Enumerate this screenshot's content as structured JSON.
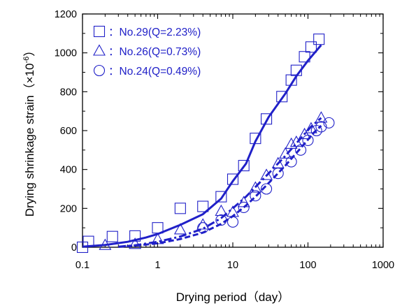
{
  "chart_data": {
    "type": "scatter",
    "x_scale": "log",
    "xlabel": "Drying period（day）",
    "ylabel": "Drying shrinkage strain（×10",
    "ylabel_superscript": "-6",
    "ylabel_suffix": "）",
    "xlim": [
      0.1,
      1000
    ],
    "ylim": [
      0,
      1200
    ],
    "x_ticks": [
      0.1,
      1,
      10,
      100,
      1000
    ],
    "x_tick_labels": [
      "0.1",
      "1",
      "10",
      "100",
      "1000"
    ],
    "y_ticks": [
      0,
      200,
      400,
      600,
      800,
      1000,
      1200
    ],
    "y_tick_labels": [
      "0",
      "200",
      "400",
      "600",
      "800",
      "1000",
      "1200"
    ],
    "grid": false,
    "legend_position": "top-left",
    "colors": {
      "series": "#2020c8",
      "axis": "#000000"
    },
    "series": [
      {
        "name": "：No.29(Q=2.23%)",
        "marker": "square",
        "fit_line": "solid",
        "points": [
          [
            0.1,
            0
          ],
          [
            0.12,
            30
          ],
          [
            0.25,
            55
          ],
          [
            0.5,
            58
          ],
          [
            1,
            100
          ],
          [
            2,
            200
          ],
          [
            4,
            210
          ],
          [
            7,
            260
          ],
          [
            10,
            350
          ],
          [
            14,
            420
          ],
          [
            20,
            560
          ],
          [
            28,
            660
          ],
          [
            45,
            775
          ],
          [
            60,
            860
          ],
          [
            70,
            910
          ],
          [
            90,
            980
          ],
          [
            110,
            1030
          ],
          [
            140,
            1070
          ]
        ],
        "fit": [
          [
            0.1,
            3
          ],
          [
            0.2,
            12
          ],
          [
            0.4,
            28
          ],
          [
            0.7,
            50
          ],
          [
            1,
            68
          ],
          [
            2,
            115
          ],
          [
            4,
            170
          ],
          [
            7,
            250
          ],
          [
            10,
            340
          ],
          [
            15,
            430
          ],
          [
            20,
            545
          ],
          [
            30,
            670
          ],
          [
            50,
            790
          ],
          [
            70,
            880
          ],
          [
            100,
            960
          ],
          [
            150,
            1040
          ]
        ]
      },
      {
        "name": "：No.26(Q=0.73%)",
        "marker": "triangle",
        "fit_line": "dash-dot",
        "points": [
          [
            0.2,
            10
          ],
          [
            0.5,
            15
          ],
          [
            1,
            40
          ],
          [
            2,
            90
          ],
          [
            4,
            115
          ],
          [
            7,
            185
          ],
          [
            10,
            180
          ],
          [
            14,
            230
          ],
          [
            20,
            305
          ],
          [
            28,
            370
          ],
          [
            40,
            430
          ],
          [
            50,
            480
          ],
          [
            60,
            530
          ],
          [
            70,
            540
          ],
          [
            90,
            580
          ],
          [
            110,
            610
          ],
          [
            150,
            665
          ]
        ],
        "fit": [
          [
            0.3,
            3
          ],
          [
            0.5,
            10
          ],
          [
            1,
            28
          ],
          [
            2,
            55
          ],
          [
            4,
            95
          ],
          [
            7,
            150
          ],
          [
            10,
            200
          ],
          [
            15,
            260
          ],
          [
            20,
            310
          ],
          [
            30,
            380
          ],
          [
            50,
            470
          ],
          [
            80,
            560
          ],
          [
            110,
            620
          ],
          [
            150,
            665
          ]
        ]
      },
      {
        "name": "：No.24(Q=0.49%)",
        "marker": "circle",
        "fit_line": "dashed",
        "points": [
          [
            4,
            100
          ],
          [
            7,
            140
          ],
          [
            10,
            130
          ],
          [
            14,
            205
          ],
          [
            20,
            265
          ],
          [
            28,
            300
          ],
          [
            40,
            380
          ],
          [
            60,
            440
          ],
          [
            80,
            500
          ],
          [
            100,
            550
          ],
          [
            130,
            600
          ],
          [
            150,
            620
          ],
          [
            190,
            640
          ]
        ],
        "fit": [
          [
            0.3,
            2
          ],
          [
            0.5,
            8
          ],
          [
            1,
            20
          ],
          [
            2,
            42
          ],
          [
            4,
            75
          ],
          [
            7,
            120
          ],
          [
            10,
            160
          ],
          [
            15,
            215
          ],
          [
            20,
            260
          ],
          [
            30,
            330
          ],
          [
            50,
            420
          ],
          [
            80,
            510
          ],
          [
            120,
            590
          ],
          [
            150,
            625
          ]
        ]
      }
    ]
  }
}
